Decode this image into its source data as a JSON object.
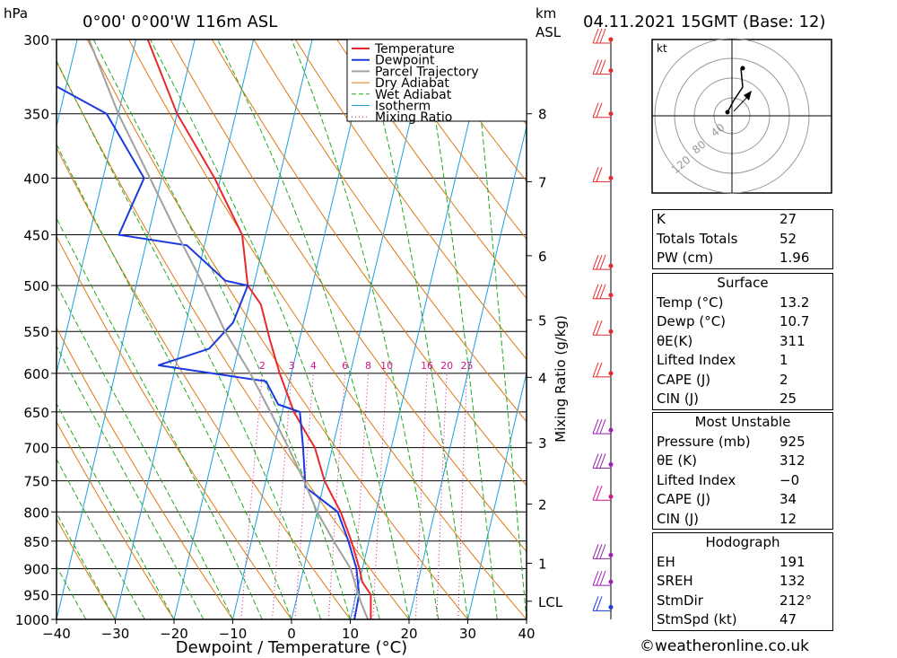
{
  "header": {
    "unit_hpa": "hPa",
    "location": "0°00' 0°00'W 116m ASL",
    "unit_km": "km",
    "unit_asl": "ASL",
    "datetime": "04.11.2021 15GMT (Base: 12)"
  },
  "colors": {
    "temperature": "#e8292b",
    "dewpoint": "#1a3ae0",
    "parcel": "#a0a0a0",
    "dry_adiabat": "#e07810",
    "wet_adiabat": "#1faa1f",
    "isotherm": "#1aa0e0",
    "mixing_ratio": "#d4148c"
  },
  "chart_data": {
    "type": "line",
    "title": "",
    "xlabel": "Dewpoint / Temperature (°C)",
    "ylabel": "hPa",
    "xlim": [
      -40,
      40
    ],
    "ylim": [
      1000,
      300
    ],
    "y_scale": "log-pressure (skew-T)",
    "skew_per_decade": 45,
    "x_ticks": [
      "−40",
      "−30",
      "−20",
      "−10",
      "0",
      "10",
      "20",
      "30",
      "40"
    ],
    "y_ticks": [
      "300",
      "350",
      "400",
      "450",
      "500",
      "550",
      "600",
      "650",
      "700",
      "750",
      "800",
      "850",
      "900",
      "950",
      "1000"
    ],
    "height_axis_label": "km ASL",
    "height_ticks": [
      {
        "label": "8",
        "p": 350
      },
      {
        "label": "7",
        "p": 403
      },
      {
        "label": "6",
        "p": 470
      },
      {
        "label": "5",
        "p": 537
      },
      {
        "label": "4",
        "p": 605
      },
      {
        "label": "3",
        "p": 693
      },
      {
        "label": "2",
        "p": 787
      },
      {
        "label": "1",
        "p": 890
      },
      {
        "label": "LCL",
        "p": 963
      }
    ],
    "mixing_ratio_label": "Mixing Ratio (g/kg)",
    "mixing_ratios": [
      "2",
      "3",
      "4",
      "6",
      "8",
      "10",
      "16",
      "20",
      "25"
    ],
    "legend": [
      "Temperature",
      "Dewpoint",
      "Parcel Trajectory",
      "Dry Adiabat",
      "Wet Adiabat",
      "Isotherm",
      "Mixing Ratio"
    ],
    "legend_position": "top-right",
    "series": [
      {
        "name": "Temperature",
        "points": [
          [
            13.5,
            1000
          ],
          [
            12.5,
            950
          ],
          [
            10.5,
            925
          ],
          [
            9.5,
            900
          ],
          [
            7,
            850
          ],
          [
            4,
            800
          ],
          [
            2,
            775
          ],
          [
            0,
            750
          ],
          [
            -3,
            700
          ],
          [
            -5.5,
            675
          ],
          [
            -8,
            650
          ],
          [
            -12,
            600
          ],
          [
            -15,
            560
          ],
          [
            -18,
            520
          ],
          [
            -21,
            500
          ],
          [
            -24,
            450
          ],
          [
            -31,
            400
          ],
          [
            -40,
            350
          ],
          [
            -48,
            300
          ]
        ]
      },
      {
        "name": "Dewpoint",
        "points": [
          [
            10.7,
            1000
          ],
          [
            10.5,
            950
          ],
          [
            9,
            900
          ],
          [
            6.5,
            850
          ],
          [
            3.5,
            800
          ],
          [
            -3,
            760
          ],
          [
            -5,
            700
          ],
          [
            -7,
            650
          ],
          [
            -11,
            640
          ],
          [
            -14,
            610
          ],
          [
            -33,
            590
          ],
          [
            -25,
            570
          ],
          [
            -22,
            540
          ],
          [
            -21,
            500
          ],
          [
            -25,
            495
          ],
          [
            -33,
            460
          ],
          [
            -45,
            450
          ],
          [
            -43,
            400
          ],
          [
            -52,
            350
          ],
          [
            -62,
            330
          ],
          [
            -70,
            310
          ],
          [
            -68,
            300
          ]
        ]
      },
      {
        "name": "Parcel Trajectory",
        "points": [
          [
            13,
            1000
          ],
          [
            11,
            963
          ],
          [
            8,
            900
          ],
          [
            4,
            850
          ],
          [
            0,
            800
          ],
          [
            -3.5,
            750
          ],
          [
            -7.5,
            700
          ],
          [
            -12,
            650
          ],
          [
            -17,
            600
          ],
          [
            -23,
            550
          ],
          [
            -28.5,
            500
          ],
          [
            -35,
            450
          ],
          [
            -42,
            400
          ],
          [
            -50,
            350
          ],
          [
            -58,
            300
          ]
        ]
      }
    ]
  },
  "hodograph": {
    "unit": "kt",
    "rings": [
      "40",
      "80",
      "120"
    ]
  },
  "indices": {
    "rows": [
      {
        "label": "K",
        "value": "27"
      },
      {
        "label": "Totals Totals",
        "value": "52"
      },
      {
        "label": "PW (cm)",
        "value": "1.96"
      }
    ]
  },
  "surface": {
    "title": "Surface",
    "rows": [
      {
        "label": "Temp (°C)",
        "value": "13.2"
      },
      {
        "label": "Dewp (°C)",
        "value": "10.7"
      },
      {
        "label": "θE(K)",
        "value": "311"
      },
      {
        "label": "Lifted Index",
        "value": "1"
      },
      {
        "label": "CAPE (J)",
        "value": "2"
      },
      {
        "label": "CIN (J)",
        "value": "25"
      }
    ]
  },
  "most_unstable": {
    "title": "Most Unstable",
    "rows": [
      {
        "label": "Pressure (mb)",
        "value": "925"
      },
      {
        "label": "θE (K)",
        "value": "312"
      },
      {
        "label": "Lifted Index",
        "value": "−0"
      },
      {
        "label": "CAPE (J)",
        "value": "34"
      },
      {
        "label": "CIN (J)",
        "value": "12"
      }
    ]
  },
  "hodograph_params": {
    "title": "Hodograph",
    "rows": [
      {
        "label": "EH",
        "value": "191"
      },
      {
        "label": "SREH",
        "value": "132"
      },
      {
        "label": "StmDir",
        "value": "212°"
      },
      {
        "label": "StmSpd (kt)",
        "value": "47"
      }
    ]
  },
  "footer": {
    "copyright": "©weatheronline.co.uk"
  }
}
